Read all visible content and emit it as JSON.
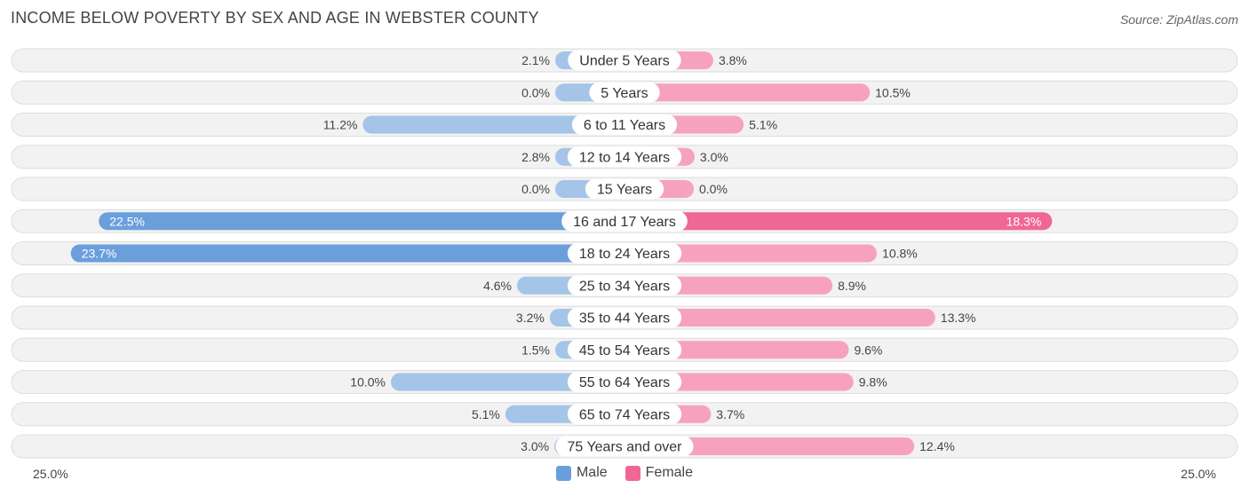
{
  "title": "INCOME BELOW POVERTY BY SEX AND AGE IN WEBSTER COUNTY",
  "source": "Source: ZipAtlas.com",
  "colors": {
    "male": "#a4c4e8",
    "male_strong": "#6a9fdc",
    "female": "#f7a2bd",
    "female_strong": "#f06793",
    "row_bg": "#f2f2f2",
    "row_border": "#dddddd"
  },
  "chart_data": {
    "type": "bar",
    "orientation": "horizontal-diverging",
    "title": "INCOME BELOW POVERTY BY SEX AND AGE IN WEBSTER COUNTY",
    "categories": [
      "Under 5 Years",
      "5 Years",
      "6 to 11 Years",
      "12 to 14 Years",
      "15 Years",
      "16 and 17 Years",
      "18 to 24 Years",
      "25 to 34 Years",
      "35 to 44 Years",
      "45 to 54 Years",
      "55 to 64 Years",
      "65 to 74 Years",
      "75 Years and over"
    ],
    "series": [
      {
        "name": "Male",
        "values": [
          2.1,
          0.0,
          11.2,
          2.8,
          0.0,
          22.5,
          23.7,
          4.6,
          3.2,
          1.5,
          10.0,
          5.1,
          3.0
        ]
      },
      {
        "name": "Female",
        "values": [
          3.8,
          10.5,
          5.1,
          3.0,
          0.0,
          18.3,
          10.8,
          8.9,
          13.3,
          9.6,
          9.8,
          3.7,
          12.4
        ]
      }
    ],
    "value_labels": {
      "male": [
        "2.1%",
        "0.0%",
        "11.2%",
        "2.8%",
        "0.0%",
        "22.5%",
        "23.7%",
        "4.6%",
        "3.2%",
        "1.5%",
        "10.0%",
        "5.1%",
        "3.0%"
      ],
      "female": [
        "3.8%",
        "10.5%",
        "5.1%",
        "3.0%",
        "0.0%",
        "18.3%",
        "10.8%",
        "8.9%",
        "13.3%",
        "9.6%",
        "9.8%",
        "3.7%",
        "12.4%"
      ]
    },
    "axis_max": 25.0,
    "axis_labels": {
      "left": "25.0%",
      "right": "25.0%"
    },
    "legend": [
      "Male",
      "Female"
    ],
    "legend_position": "bottom-center",
    "grid": false
  }
}
